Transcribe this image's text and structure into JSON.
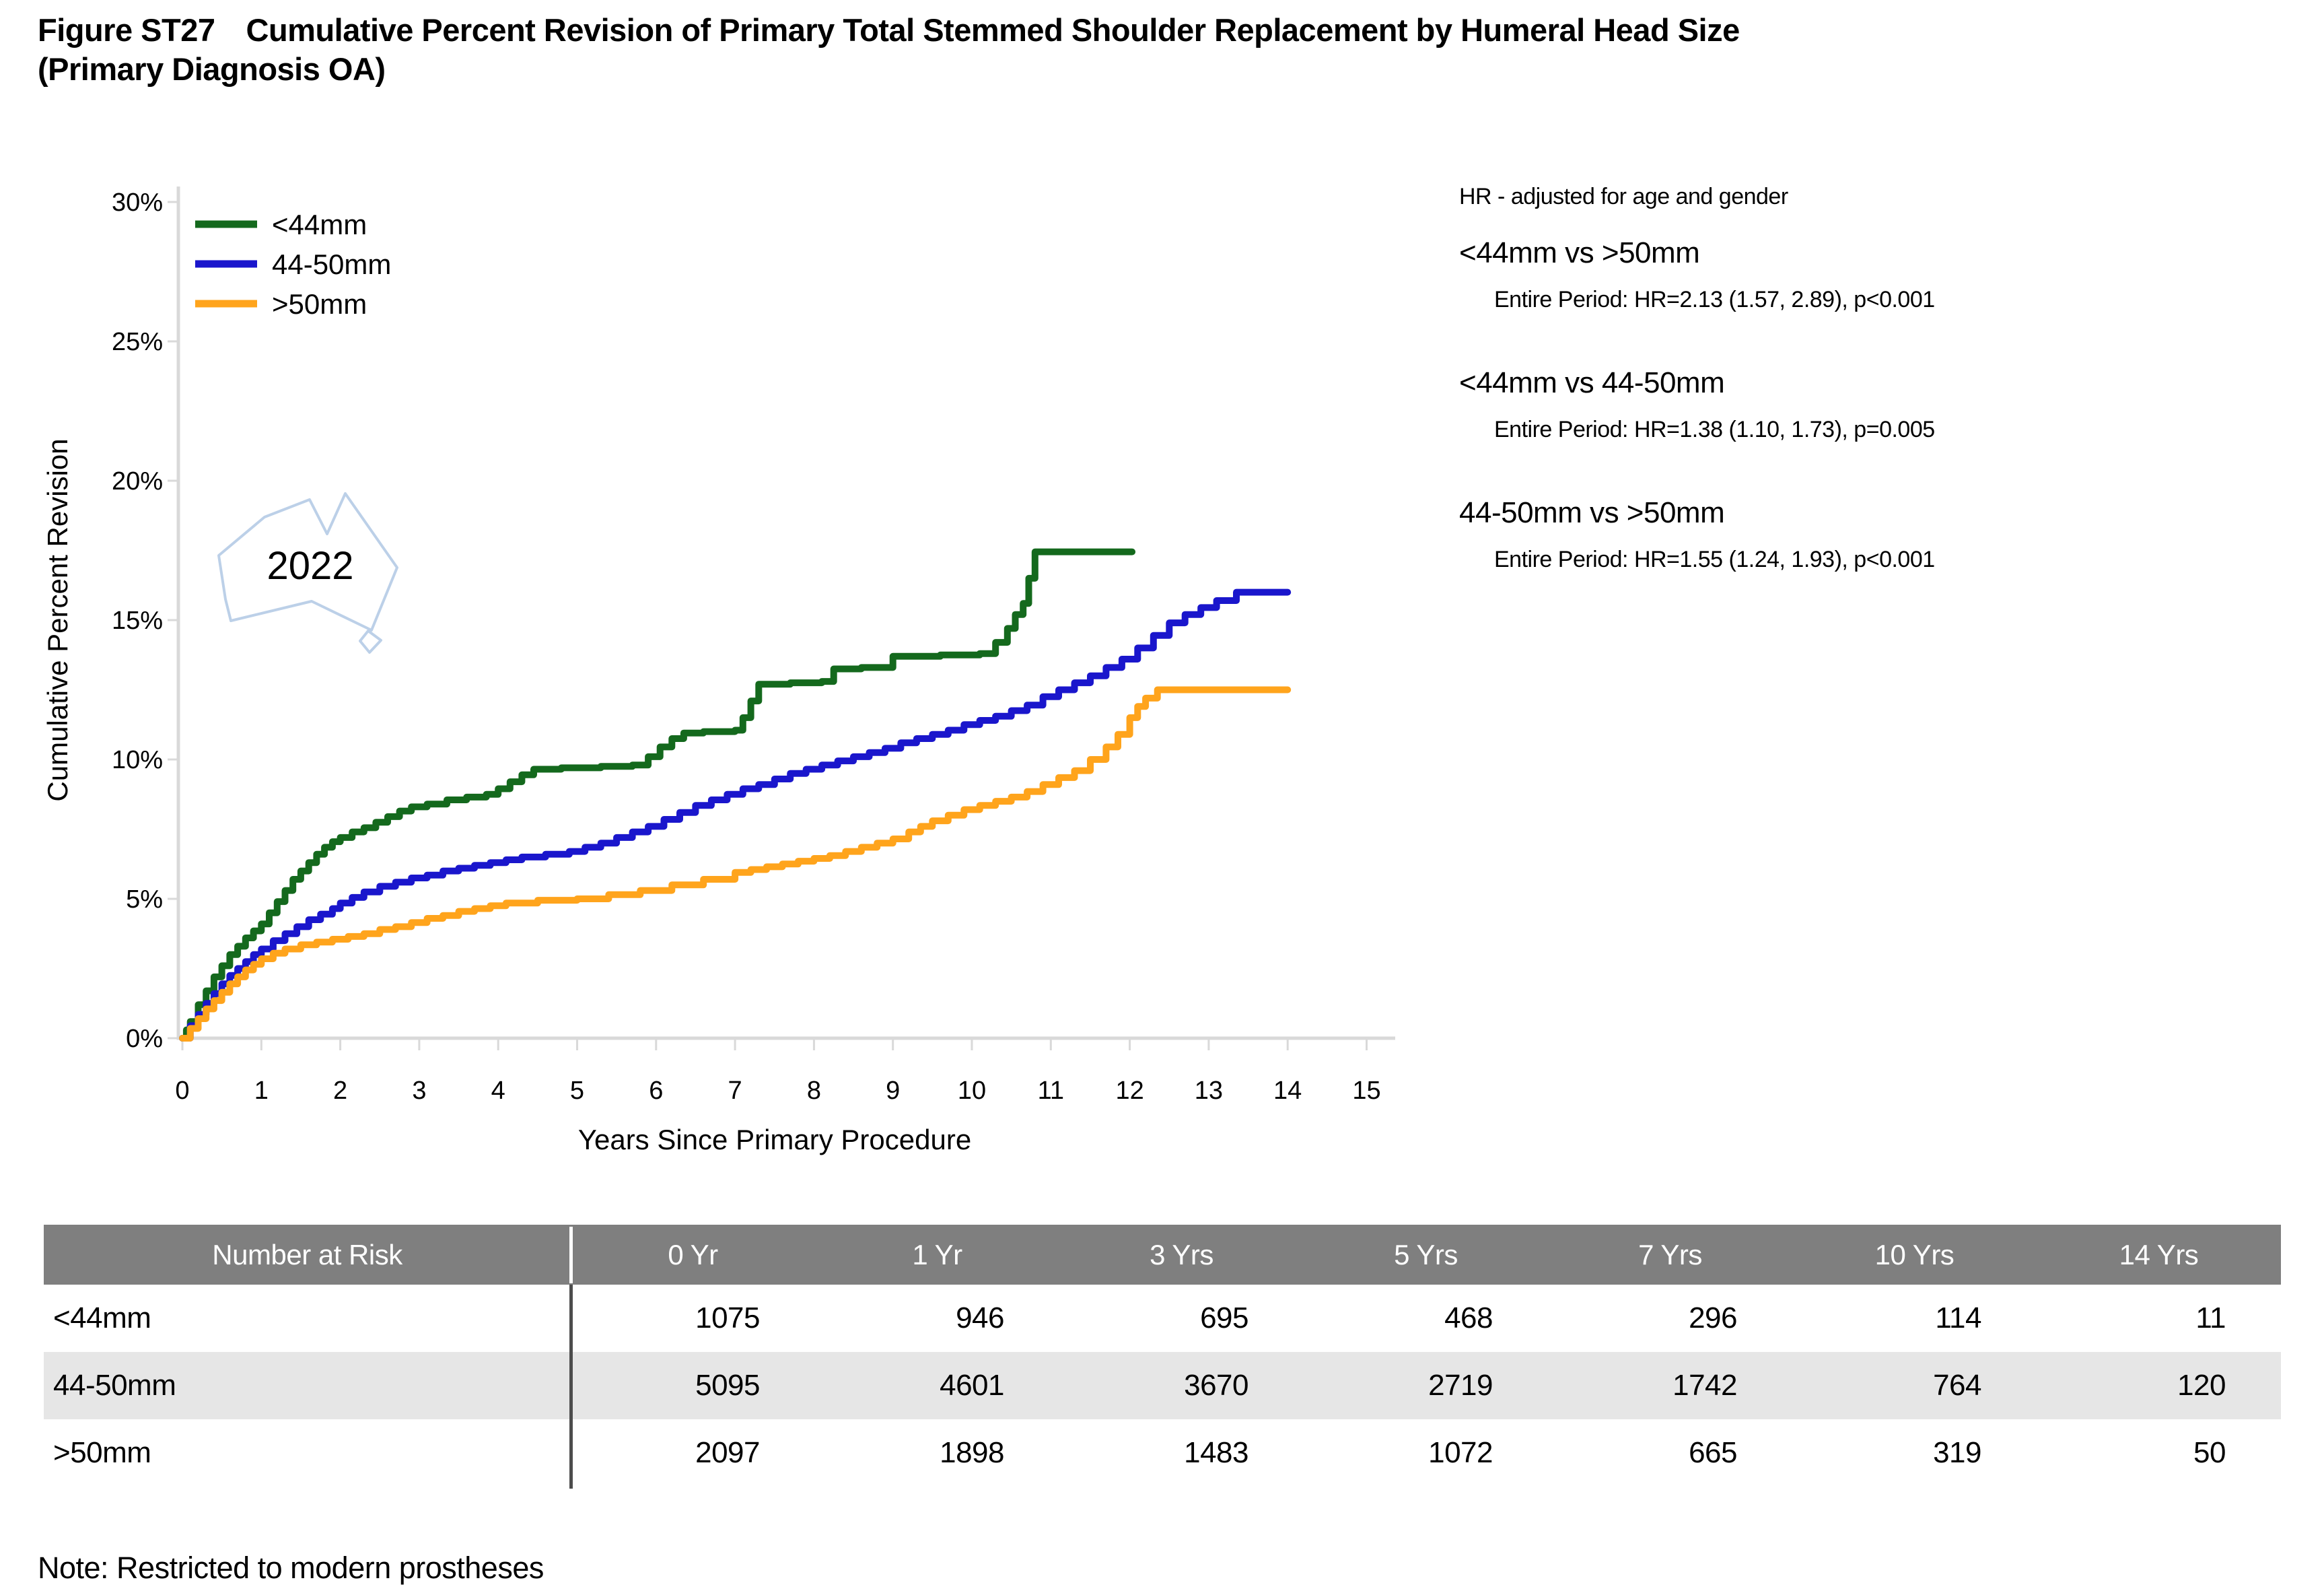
{
  "title": {
    "figure_label": "Figure ST27",
    "text": "Cumulative Percent Revision of Primary Total Stemmed Shoulder Replacement by Humeral Head Size",
    "subtitle": "(Primary Diagnosis OA)"
  },
  "watermark": {
    "year": "2022"
  },
  "hr_annotations": {
    "heading": "HR - adjusted for age and gender",
    "comparisons": [
      {
        "title": "<44mm vs >50mm",
        "detail": "Entire Period: HR=2.13 (1.57, 2.89), p<0.001"
      },
      {
        "title": "<44mm vs 44-50mm",
        "detail": "Entire Period: HR=1.38 (1.10, 1.73), p=0.005"
      },
      {
        "title": "44-50mm vs >50mm",
        "detail": "Entire Period: HR=1.55 (1.24, 1.93), p<0.001"
      }
    ]
  },
  "chart_data": {
    "type": "line",
    "style": "step-after cumulative incidence (Kaplan-Meier style) curves",
    "title": "Cumulative Percent Revision of Primary Total Stemmed Shoulder Replacement by Humeral Head Size (Primary Diagnosis OA)",
    "xlabel": "Years Since Primary Procedure",
    "ylabel": "Cumulative Percent Revision",
    "xlim": [
      0,
      15
    ],
    "ylim": [
      0,
      30
    ],
    "grid": false,
    "legend_position": "inside top-left",
    "x_ticks": [
      0,
      1,
      2,
      3,
      4,
      5,
      6,
      7,
      8,
      9,
      10,
      11,
      12,
      13,
      14,
      15
    ],
    "y_ticks": [
      0,
      5,
      10,
      15,
      20,
      25,
      30
    ],
    "y_tick_labels": [
      "0%",
      "5%",
      "10%",
      "15%",
      "20%",
      "25%",
      "30%"
    ],
    "series": [
      {
        "name": "<44mm",
        "color": "#14691d",
        "points": [
          [
            0,
            0
          ],
          [
            0.05,
            0.3
          ],
          [
            0.1,
            0.6
          ],
          [
            0.2,
            1.2
          ],
          [
            0.3,
            1.7
          ],
          [
            0.4,
            2.2
          ],
          [
            0.5,
            2.6
          ],
          [
            0.6,
            3.0
          ],
          [
            0.7,
            3.3
          ],
          [
            0.8,
            3.6
          ],
          [
            0.9,
            3.85
          ],
          [
            1.0,
            4.1
          ],
          [
            1.1,
            4.5
          ],
          [
            1.2,
            4.9
          ],
          [
            1.3,
            5.3
          ],
          [
            1.4,
            5.7
          ],
          [
            1.5,
            6.0
          ],
          [
            1.6,
            6.3
          ],
          [
            1.7,
            6.6
          ],
          [
            1.8,
            6.85
          ],
          [
            1.9,
            7.05
          ],
          [
            2.0,
            7.2
          ],
          [
            2.15,
            7.4
          ],
          [
            2.3,
            7.55
          ],
          [
            2.45,
            7.75
          ],
          [
            2.6,
            7.95
          ],
          [
            2.75,
            8.15
          ],
          [
            2.9,
            8.3
          ],
          [
            3.1,
            8.4
          ],
          [
            3.35,
            8.55
          ],
          [
            3.6,
            8.65
          ],
          [
            3.85,
            8.75
          ],
          [
            4.0,
            8.95
          ],
          [
            4.15,
            9.2
          ],
          [
            4.3,
            9.45
          ],
          [
            4.45,
            9.65
          ],
          [
            4.8,
            9.7
          ],
          [
            5.3,
            9.75
          ],
          [
            5.7,
            9.8
          ],
          [
            5.9,
            10.1
          ],
          [
            6.05,
            10.45
          ],
          [
            6.2,
            10.75
          ],
          [
            6.35,
            10.95
          ],
          [
            6.6,
            11.0
          ],
          [
            7.0,
            11.05
          ],
          [
            7.1,
            11.5
          ],
          [
            7.2,
            12.1
          ],
          [
            7.3,
            12.7
          ],
          [
            7.7,
            12.75
          ],
          [
            8.1,
            12.8
          ],
          [
            8.25,
            13.25
          ],
          [
            8.6,
            13.3
          ],
          [
            9.0,
            13.7
          ],
          [
            9.6,
            13.75
          ],
          [
            10.1,
            13.8
          ],
          [
            10.3,
            14.2
          ],
          [
            10.45,
            14.7
          ],
          [
            10.55,
            15.2
          ],
          [
            10.65,
            15.6
          ],
          [
            10.72,
            16.5
          ],
          [
            10.8,
            17.45
          ],
          [
            12.03,
            17.45
          ]
        ]
      },
      {
        "name": "44-50mm",
        "color": "#1a16cc",
        "points": [
          [
            0,
            0
          ],
          [
            0.1,
            0.45
          ],
          [
            0.2,
            0.85
          ],
          [
            0.3,
            1.25
          ],
          [
            0.4,
            1.6
          ],
          [
            0.5,
            1.95
          ],
          [
            0.6,
            2.25
          ],
          [
            0.7,
            2.5
          ],
          [
            0.8,
            2.75
          ],
          [
            0.9,
            3.0
          ],
          [
            1.0,
            3.2
          ],
          [
            1.15,
            3.5
          ],
          [
            1.3,
            3.75
          ],
          [
            1.45,
            4.0
          ],
          [
            1.6,
            4.25
          ],
          [
            1.75,
            4.45
          ],
          [
            1.9,
            4.65
          ],
          [
            2.0,
            4.85
          ],
          [
            2.15,
            5.05
          ],
          [
            2.3,
            5.25
          ],
          [
            2.5,
            5.45
          ],
          [
            2.7,
            5.6
          ],
          [
            2.9,
            5.75
          ],
          [
            3.1,
            5.85
          ],
          [
            3.3,
            6.0
          ],
          [
            3.5,
            6.1
          ],
          [
            3.7,
            6.2
          ],
          [
            3.9,
            6.3
          ],
          [
            4.1,
            6.4
          ],
          [
            4.3,
            6.5
          ],
          [
            4.6,
            6.6
          ],
          [
            4.9,
            6.7
          ],
          [
            5.1,
            6.85
          ],
          [
            5.3,
            7.0
          ],
          [
            5.5,
            7.2
          ],
          [
            5.7,
            7.4
          ],
          [
            5.9,
            7.6
          ],
          [
            6.1,
            7.85
          ],
          [
            6.3,
            8.1
          ],
          [
            6.5,
            8.35
          ],
          [
            6.7,
            8.55
          ],
          [
            6.9,
            8.75
          ],
          [
            7.1,
            8.95
          ],
          [
            7.3,
            9.1
          ],
          [
            7.5,
            9.3
          ],
          [
            7.7,
            9.5
          ],
          [
            7.9,
            9.65
          ],
          [
            8.1,
            9.8
          ],
          [
            8.3,
            9.95
          ],
          [
            8.5,
            10.1
          ],
          [
            8.7,
            10.25
          ],
          [
            8.9,
            10.4
          ],
          [
            9.1,
            10.6
          ],
          [
            9.3,
            10.75
          ],
          [
            9.5,
            10.9
          ],
          [
            9.7,
            11.05
          ],
          [
            9.9,
            11.25
          ],
          [
            10.1,
            11.4
          ],
          [
            10.3,
            11.55
          ],
          [
            10.5,
            11.75
          ],
          [
            10.7,
            11.95
          ],
          [
            10.9,
            12.25
          ],
          [
            11.1,
            12.5
          ],
          [
            11.3,
            12.75
          ],
          [
            11.5,
            13.0
          ],
          [
            11.7,
            13.3
          ],
          [
            11.9,
            13.6
          ],
          [
            12.1,
            14.0
          ],
          [
            12.3,
            14.45
          ],
          [
            12.5,
            14.9
          ],
          [
            12.7,
            15.2
          ],
          [
            12.9,
            15.45
          ],
          [
            13.1,
            15.7
          ],
          [
            13.35,
            16.0
          ],
          [
            14.0,
            16.0
          ]
        ]
      },
      {
        "name": ">50mm",
        "color": "#ffa41c",
        "points": [
          [
            0,
            0
          ],
          [
            0.1,
            0.35
          ],
          [
            0.2,
            0.7
          ],
          [
            0.3,
            1.05
          ],
          [
            0.4,
            1.35
          ],
          [
            0.5,
            1.65
          ],
          [
            0.6,
            1.95
          ],
          [
            0.7,
            2.2
          ],
          [
            0.8,
            2.45
          ],
          [
            0.9,
            2.65
          ],
          [
            1.0,
            2.85
          ],
          [
            1.15,
            3.05
          ],
          [
            1.3,
            3.2
          ],
          [
            1.5,
            3.35
          ],
          [
            1.7,
            3.45
          ],
          [
            1.9,
            3.55
          ],
          [
            2.1,
            3.65
          ],
          [
            2.3,
            3.75
          ],
          [
            2.5,
            3.9
          ],
          [
            2.7,
            4.0
          ],
          [
            2.9,
            4.15
          ],
          [
            3.1,
            4.3
          ],
          [
            3.3,
            4.4
          ],
          [
            3.5,
            4.55
          ],
          [
            3.7,
            4.65
          ],
          [
            3.9,
            4.75
          ],
          [
            4.1,
            4.85
          ],
          [
            4.5,
            4.95
          ],
          [
            5.0,
            5.0
          ],
          [
            5.4,
            5.15
          ],
          [
            5.8,
            5.3
          ],
          [
            6.2,
            5.5
          ],
          [
            6.6,
            5.7
          ],
          [
            7.0,
            5.95
          ],
          [
            7.2,
            6.05
          ],
          [
            7.4,
            6.15
          ],
          [
            7.6,
            6.25
          ],
          [
            7.8,
            6.35
          ],
          [
            8.0,
            6.45
          ],
          [
            8.2,
            6.55
          ],
          [
            8.4,
            6.7
          ],
          [
            8.6,
            6.85
          ],
          [
            8.8,
            7.0
          ],
          [
            9.0,
            7.15
          ],
          [
            9.2,
            7.4
          ],
          [
            9.35,
            7.6
          ],
          [
            9.5,
            7.8
          ],
          [
            9.7,
            8.0
          ],
          [
            9.9,
            8.2
          ],
          [
            10.1,
            8.35
          ],
          [
            10.3,
            8.5
          ],
          [
            10.5,
            8.65
          ],
          [
            10.7,
            8.85
          ],
          [
            10.9,
            9.1
          ],
          [
            11.1,
            9.35
          ],
          [
            11.3,
            9.6
          ],
          [
            11.5,
            10.0
          ],
          [
            11.7,
            10.45
          ],
          [
            11.85,
            10.9
          ],
          [
            12.0,
            11.5
          ],
          [
            12.1,
            11.9
          ],
          [
            12.2,
            12.2
          ],
          [
            12.35,
            12.5
          ],
          [
            14.0,
            12.5
          ]
        ]
      }
    ]
  },
  "risk_table": {
    "header": [
      "Number at Risk",
      "0 Yr",
      "1 Yr",
      "3 Yrs",
      "5 Yrs",
      "7 Yrs",
      "10 Yrs",
      "14 Yrs"
    ],
    "rows": [
      {
        "label": "<44mm",
        "values": [
          "1075",
          "946",
          "695",
          "468",
          "296",
          "114",
          "11"
        ]
      },
      {
        "label": "44-50mm",
        "values": [
          "5095",
          "4601",
          "3670",
          "2719",
          "1742",
          "764",
          "120"
        ]
      },
      {
        "label": ">50mm",
        "values": [
          "2097",
          "1898",
          "1483",
          "1072",
          "665",
          "319",
          "50"
        ]
      }
    ]
  },
  "note": "Note: Restricted to modern prostheses",
  "colors": {
    "axis": "#d9d9d9",
    "text": "#000000",
    "table_header_bg": "#7f7f7f",
    "table_header_text": "#ffffff",
    "table_alt_row": "#e6e6e6",
    "table_divider": "#4d4d4d",
    "watermark_outline": "#bcd0e8",
    "watermark_text": "#a6c3e4"
  }
}
